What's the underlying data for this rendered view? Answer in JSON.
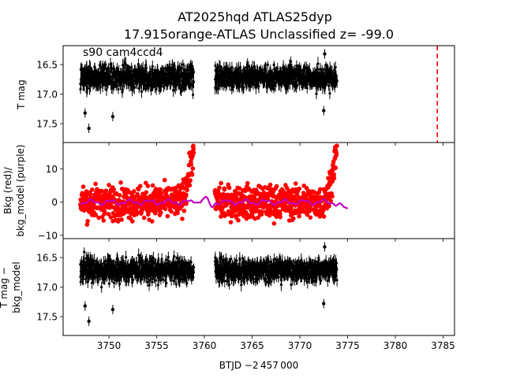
{
  "figure": {
    "title_line1": "AT2025hqd  ATLAS25dyp",
    "title_line2": "17.915orange-ATLAS Unclassified z= -99.0",
    "xlabel": "BTJD −2 457 000",
    "xlim": [
      3745.2,
      3786.2
    ],
    "xticks": [
      3750,
      3755,
      3760,
      3765,
      3770,
      3775,
      3780,
      3785
    ]
  },
  "chart_data": [
    {
      "type": "scatter",
      "panel": "top",
      "ylabel": "T mag",
      "annotation": "s90 cam4ccd4",
      "y_inverted": true,
      "ylim": [
        17.82,
        16.18
      ],
      "yticks": [
        16.5,
        17.0,
        17.5
      ],
      "ytick_labels": [
        "16.5",
        "17.0",
        "17.5"
      ],
      "series": [
        {
          "name": "lightcurve segment 1",
          "color": "#000000",
          "x_range": [
            3747.0,
            3758.9
          ],
          "center": 16.72,
          "spread": 0.22,
          "outliers": [
            {
              "x": 3747.5,
              "y": 17.32
            },
            {
              "x": 3747.9,
              "y": 17.58
            },
            {
              "x": 3750.4,
              "y": 17.38
            }
          ]
        },
        {
          "name": "lightcurve segment 2",
          "color": "#000000",
          "x_range": [
            3761.1,
            3773.9
          ],
          "center": 16.72,
          "spread": 0.2,
          "outliers": [
            {
              "x": 3772.5,
              "y": 17.28
            },
            {
              "x": 3772.6,
              "y": 16.32
            }
          ]
        }
      ],
      "vline": {
        "x": 3784.4,
        "color": "#ff0000",
        "style": "dashed"
      }
    },
    {
      "type": "scatter",
      "panel": "middle",
      "ylabel_line1": "Bkg (red)/",
      "ylabel_line2": "bkg_model (purple)",
      "ylim": [
        -11,
        18
      ],
      "yticks": [
        -10,
        0,
        10
      ],
      "ytick_labels": [
        "−10",
        "0",
        "10"
      ],
      "series": [
        {
          "name": "Bkg",
          "color": "#ff0000",
          "segments": [
            {
              "x_range": [
                3747.0,
                3758.9
              ],
              "base": 0,
              "spread": 7,
              "ramp_start": 3757.2,
              "ramp_end_value": 17
            },
            {
              "x_range": [
                3761.1,
                3773.9
              ],
              "base": 0,
              "spread": 7,
              "ramp_start": 3772.2,
              "ramp_end_value": 17
            }
          ]
        },
        {
          "name": "bkg_model",
          "color": "#bf00bf",
          "x_range": [
            3747.0,
            3775.0
          ],
          "level": 0
        }
      ]
    },
    {
      "type": "scatter",
      "panel": "bottom",
      "ylabel_line1": "T mag −",
      "ylabel_line2": "bkg_model",
      "y_inverted": true,
      "ylim": [
        17.82,
        16.18
      ],
      "yticks": [
        16.5,
        17.0,
        17.5
      ],
      "ytick_labels": [
        "16.5",
        "17.0",
        "17.5"
      ],
      "series": [
        {
          "name": "corrected segment 1",
          "color": "#000000",
          "x_range": [
            3747.0,
            3758.9
          ],
          "center": 16.72,
          "spread": 0.22,
          "outliers": [
            {
              "x": 3747.5,
              "y": 17.32
            },
            {
              "x": 3747.9,
              "y": 17.58
            },
            {
              "x": 3750.4,
              "y": 17.38
            }
          ]
        },
        {
          "name": "corrected segment 2",
          "color": "#000000",
          "x_range": [
            3761.1,
            3773.9
          ],
          "center": 16.72,
          "spread": 0.2,
          "outliers": [
            {
              "x": 3772.5,
              "y": 17.28
            },
            {
              "x": 3772.6,
              "y": 16.32
            }
          ]
        }
      ]
    }
  ]
}
